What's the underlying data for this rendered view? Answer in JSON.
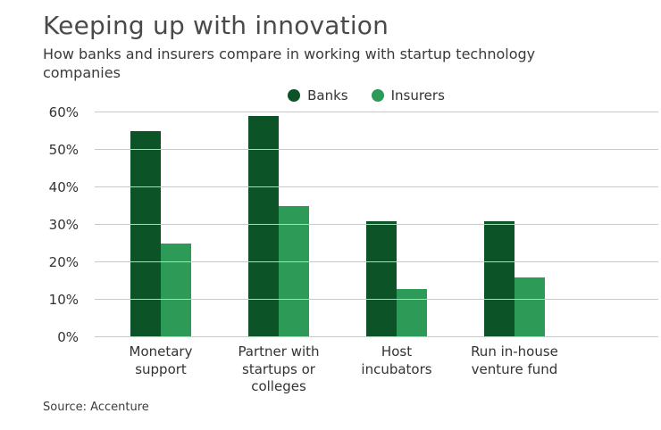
{
  "chart_data": {
    "type": "bar",
    "title": "Keeping up with innovation",
    "subtitle": "How banks and insurers compare in working with startup technology companies",
    "source": "Source: Accenture",
    "categories": [
      "Monetary support",
      "Partner with startups or colleges",
      "Host incubators",
      "Run in-house venture fund"
    ],
    "series": [
      {
        "name": "Banks",
        "color": "#0d5328",
        "values": [
          55,
          59,
          31,
          31
        ]
      },
      {
        "name": "Insurers",
        "color": "#2e9a57",
        "values": [
          25,
          35,
          13,
          16
        ]
      }
    ],
    "xlabel": "",
    "ylabel": "",
    "ylim": [
      0,
      60
    ],
    "yticks": [
      0,
      10,
      20,
      30,
      40,
      50,
      60
    ],
    "ytick_suffix": "%",
    "grid": true,
    "legend_position": "top-center"
  },
  "colors": {
    "title": "#4a4a4a",
    "subtitle": "#3a3a3a",
    "axis_text": "#333333",
    "gridline": "#c9c9c9",
    "background": "#ffffff"
  }
}
